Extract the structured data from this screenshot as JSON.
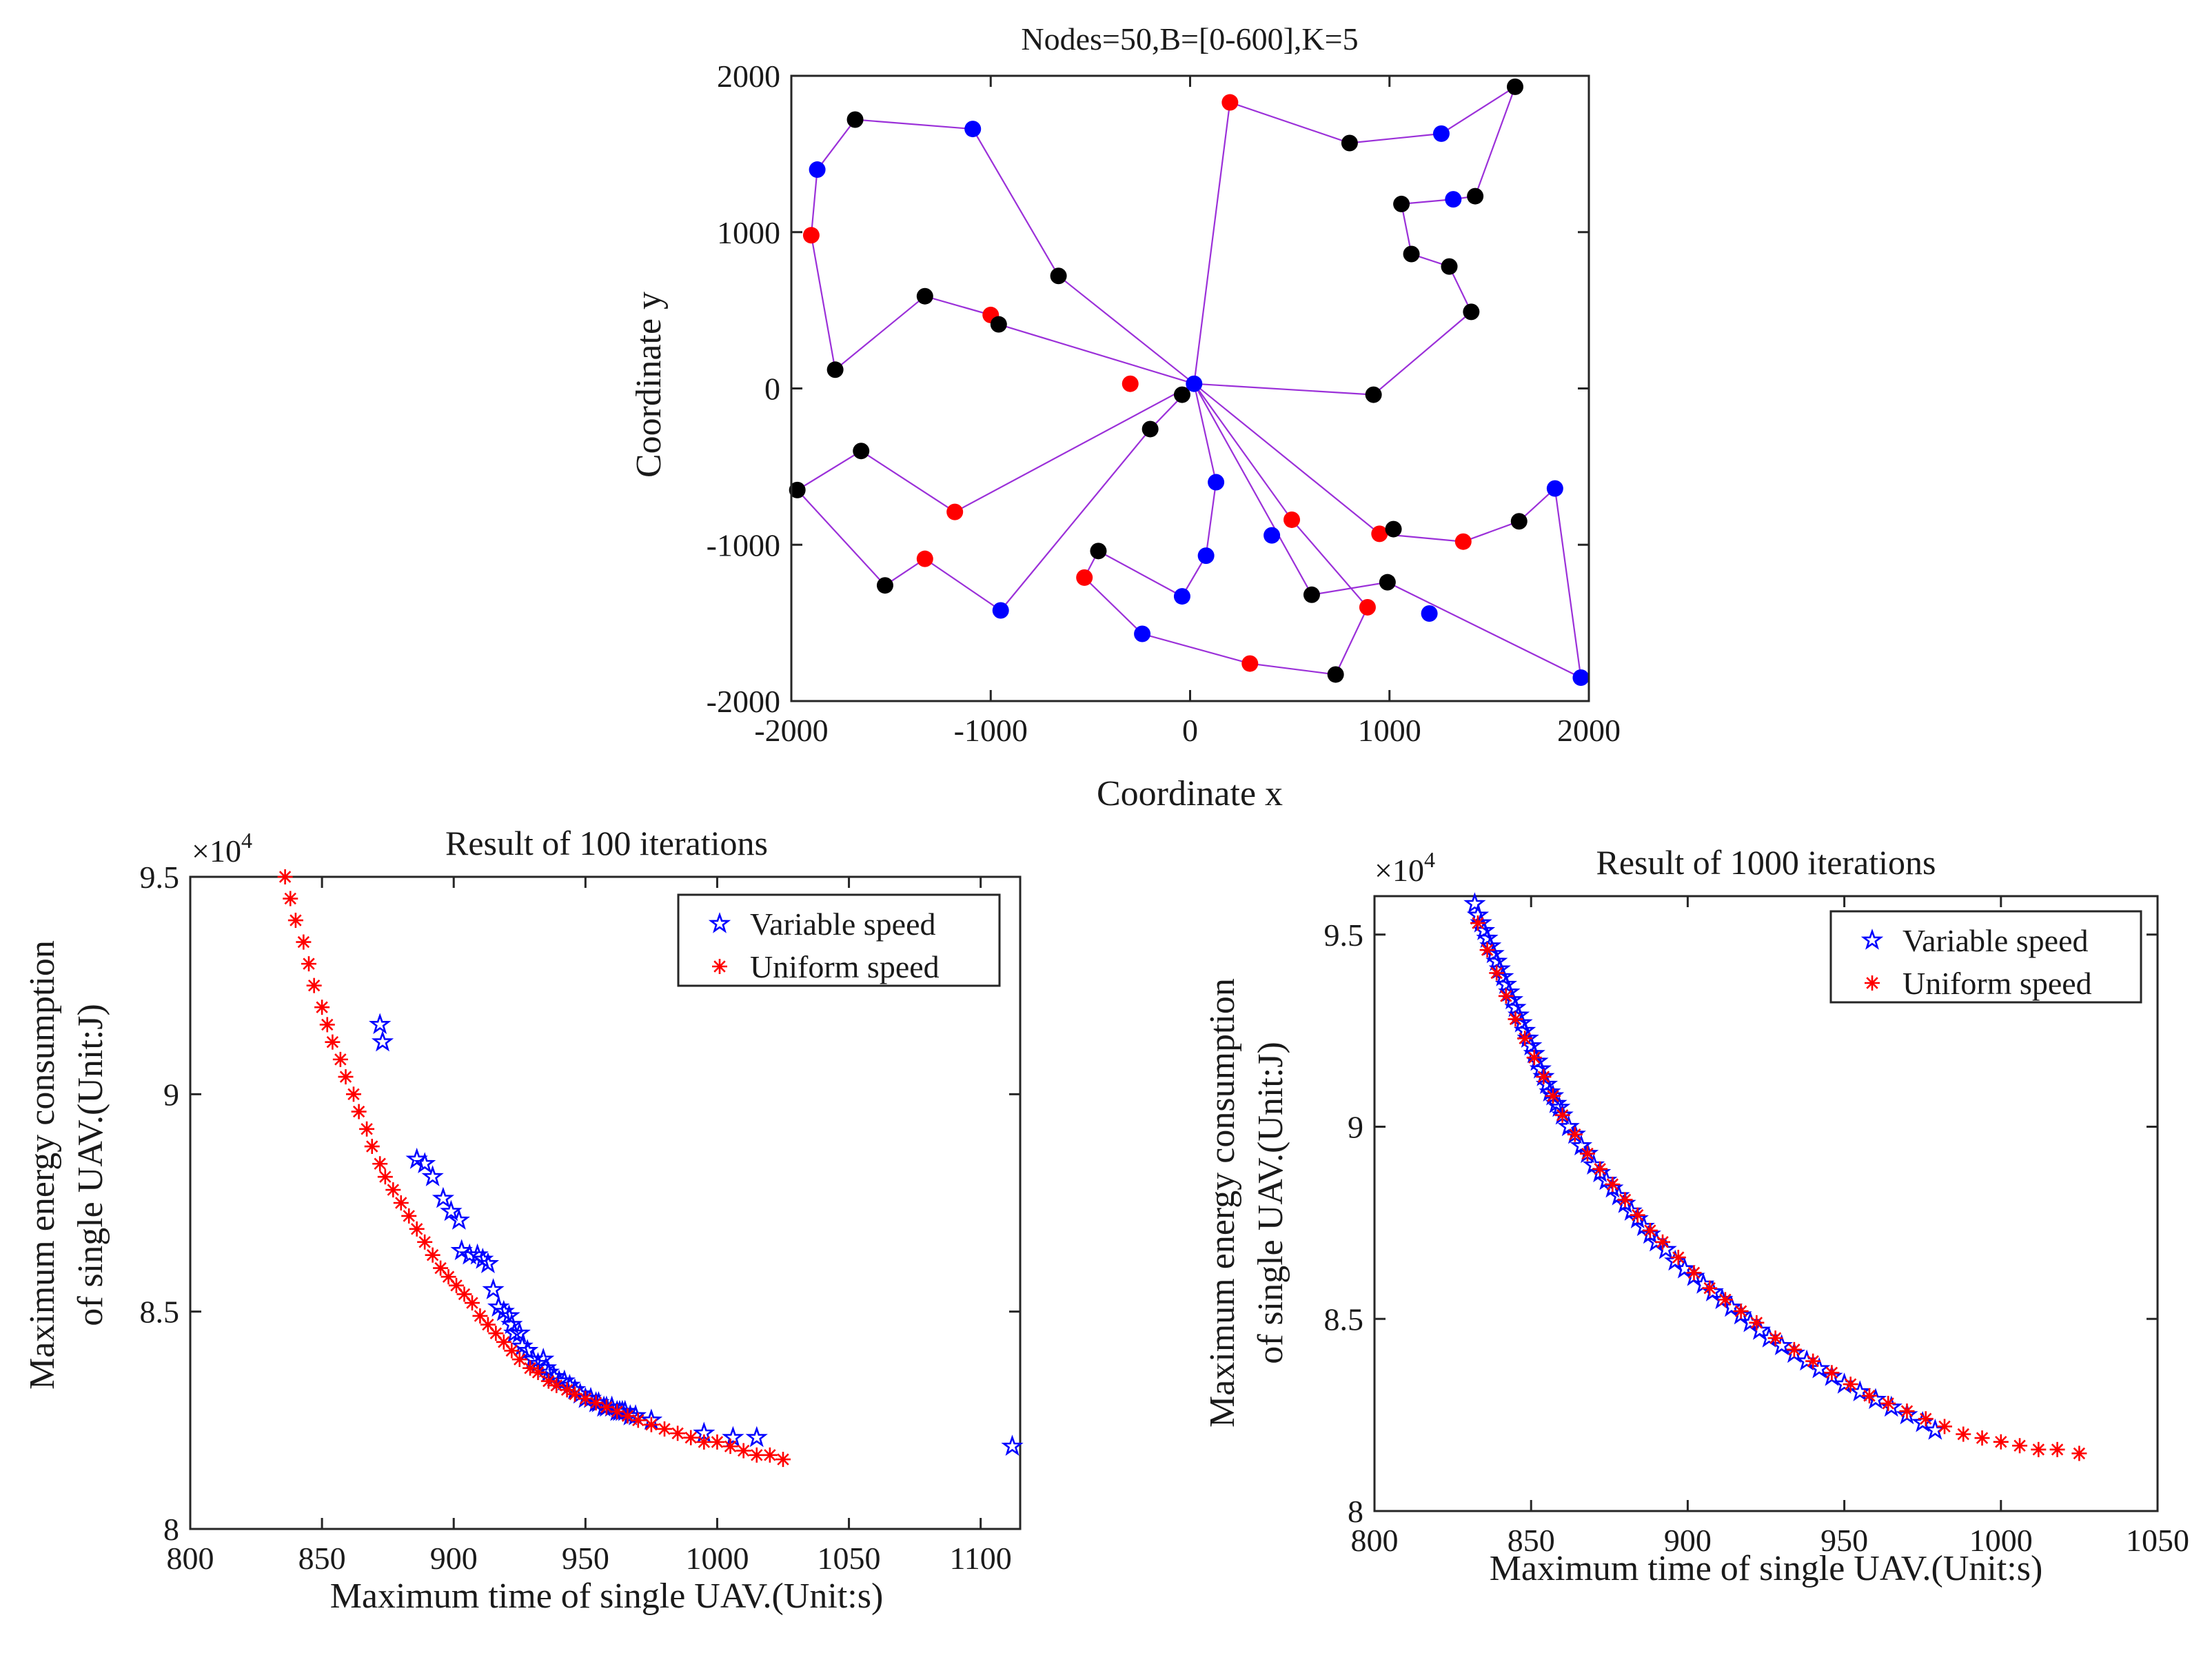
{
  "colors": {
    "route": "#9b30d9",
    "black_node": "#000000",
    "blue_node": "#0000ff",
    "red_node": "#ff0000",
    "variable": "#0000ff",
    "uniform": "#ff0000"
  },
  "chart_data": [
    {
      "id": "route_map",
      "type": "scatter",
      "title": "Nodes=50,B=[0-600],K=5",
      "xlabel": "Coordinate x",
      "ylabel": "Coordinate y",
      "xlim": [
        -2000,
        2000
      ],
      "ylim": [
        -2000,
        2000
      ],
      "xticks": [
        -2000,
        -1000,
        0,
        1000,
        2000
      ],
      "yticks": [
        -2000,
        -1000,
        0,
        1000,
        2000
      ],
      "xtick_labels": [
        "-2000",
        "-1000",
        "0",
        "1000",
        "2000"
      ],
      "ytick_labels": [
        "-2000",
        "-1000",
        "0",
        "1000",
        "2000"
      ],
      "depot": [
        20,
        30
      ],
      "nodes": [
        {
          "x": -1680,
          "y": 1720,
          "c": "black"
        },
        {
          "x": -1090,
          "y": 1660,
          "c": "blue"
        },
        {
          "x": -1870,
          "y": 1400,
          "c": "blue"
        },
        {
          "x": -1900,
          "y": 980,
          "c": "red"
        },
        {
          "x": -1780,
          "y": 120,
          "c": "black"
        },
        {
          "x": -660,
          "y": 720,
          "c": "black"
        },
        {
          "x": -1330,
          "y": 590,
          "c": "black"
        },
        {
          "x": -1000,
          "y": 470,
          "c": "red"
        },
        {
          "x": -960,
          "y": 410,
          "c": "black"
        },
        {
          "x": -300,
          "y": 30,
          "c": "red"
        },
        {
          "x": -40,
          "y": -40,
          "c": "black"
        },
        {
          "x": 200,
          "y": 1830,
          "c": "red"
        },
        {
          "x": 800,
          "y": 1570,
          "c": "black"
        },
        {
          "x": 1260,
          "y": 1630,
          "c": "blue"
        },
        {
          "x": 1630,
          "y": 1930,
          "c": "black"
        },
        {
          "x": 1430,
          "y": 1230,
          "c": "black"
        },
        {
          "x": 1320,
          "y": 1210,
          "c": "blue"
        },
        {
          "x": 1060,
          "y": 1180,
          "c": "black"
        },
        {
          "x": 1110,
          "y": 860,
          "c": "black"
        },
        {
          "x": 1300,
          "y": 780,
          "c": "black"
        },
        {
          "x": 1410,
          "y": 490,
          "c": "black"
        },
        {
          "x": 920,
          "y": -40,
          "c": "black"
        },
        {
          "x": -1650,
          "y": -400,
          "c": "black"
        },
        {
          "x": -1970,
          "y": -650,
          "c": "black"
        },
        {
          "x": -1180,
          "y": -790,
          "c": "red"
        },
        {
          "x": -1530,
          "y": -1260,
          "c": "black"
        },
        {
          "x": -1330,
          "y": -1090,
          "c": "red"
        },
        {
          "x": -950,
          "y": -1420,
          "c": "blue"
        },
        {
          "x": -200,
          "y": -260,
          "c": "black"
        },
        {
          "x": 130,
          "y": -600,
          "c": "blue"
        },
        {
          "x": 80,
          "y": -1070,
          "c": "blue"
        },
        {
          "x": -40,
          "y": -1330,
          "c": "blue"
        },
        {
          "x": -460,
          "y": -1040,
          "c": "black"
        },
        {
          "x": -530,
          "y": -1210,
          "c": "red"
        },
        {
          "x": -240,
          "y": -1570,
          "c": "blue"
        },
        {
          "x": 300,
          "y": -1760,
          "c": "red"
        },
        {
          "x": 730,
          "y": -1830,
          "c": "black"
        },
        {
          "x": 890,
          "y": -1400,
          "c": "red"
        },
        {
          "x": 610,
          "y": -1320,
          "c": "black"
        },
        {
          "x": 410,
          "y": -940,
          "c": "blue"
        },
        {
          "x": 510,
          "y": -840,
          "c": "red"
        },
        {
          "x": 990,
          "y": -1240,
          "c": "black"
        },
        {
          "x": 1200,
          "y": -1440,
          "c": "blue"
        },
        {
          "x": 1960,
          "y": -1850,
          "c": "blue"
        },
        {
          "x": 1830,
          "y": -640,
          "c": "blue"
        },
        {
          "x": 1650,
          "y": -850,
          "c": "black"
        },
        {
          "x": 1370,
          "y": -980,
          "c": "red"
        },
        {
          "x": 950,
          "y": -930,
          "c": "red"
        },
        {
          "x": 1020,
          "y": -900,
          "c": "black"
        }
      ],
      "routes": [
        [
          [
            20,
            30
          ],
          [
            -660,
            720
          ],
          [
            -1090,
            1660
          ],
          [
            -1680,
            1720
          ],
          [
            -1870,
            1400
          ],
          [
            -1900,
            980
          ],
          [
            -1780,
            120
          ],
          [
            -1330,
            590
          ],
          [
            -1000,
            470
          ],
          [
            -960,
            410
          ],
          [
            20,
            30
          ]
        ],
        [
          [
            20,
            30
          ],
          [
            200,
            1830
          ],
          [
            800,
            1570
          ],
          [
            1260,
            1630
          ],
          [
            1630,
            1930
          ],
          [
            1430,
            1230
          ],
          [
            1320,
            1210
          ],
          [
            1060,
            1180
          ],
          [
            1110,
            860
          ],
          [
            1300,
            780
          ],
          [
            1410,
            490
          ],
          [
            920,
            -40
          ],
          [
            20,
            30
          ]
        ],
        [
          [
            20,
            30
          ],
          [
            -1180,
            -790
          ],
          [
            -1650,
            -400
          ],
          [
            -1970,
            -650
          ],
          [
            -1530,
            -1260
          ],
          [
            -1330,
            -1090
          ],
          [
            -950,
            -1420
          ],
          [
            -200,
            -260
          ],
          [
            20,
            30
          ]
        ],
        [
          [
            20,
            30
          ],
          [
            130,
            -600
          ],
          [
            80,
            -1070
          ],
          [
            -40,
            -1330
          ],
          [
            -460,
            -1040
          ],
          [
            -530,
            -1210
          ],
          [
            -240,
            -1570
          ],
          [
            300,
            -1760
          ],
          [
            730,
            -1830
          ],
          [
            890,
            -1400
          ],
          [
            510,
            -840
          ],
          [
            20,
            30
          ]
        ],
        [
          [
            20,
            30
          ],
          [
            610,
            -1320
          ],
          [
            990,
            -1240
          ],
          [
            1960,
            -1850
          ],
          [
            1830,
            -640
          ],
          [
            1650,
            -850
          ],
          [
            1370,
            -980
          ],
          [
            950,
            -930
          ],
          [
            20,
            30
          ]
        ]
      ]
    },
    {
      "id": "pareto_100",
      "type": "scatter",
      "title": "Result of 100 iterations",
      "xlabel": "Maximum time of single UAV.(Unit:s)",
      "ylabel": [
        "Maximum energy consumption",
        "of single UAV.(Unit:J)"
      ],
      "multiplier_base": "×10",
      "multiplier_exp": "4",
      "xlim": [
        800,
        1115
      ],
      "ylim": [
        80000,
        95000
      ],
      "xticks": [
        800,
        850,
        900,
        950,
        1000,
        1050,
        1100
      ],
      "yticks": [
        80000,
        85000,
        90000,
        95000
      ],
      "xtick_labels": [
        "800",
        "850",
        "900",
        "950",
        "1000",
        "1050",
        "1100"
      ],
      "ytick_labels": [
        "8",
        "8.5",
        "9",
        "9.5"
      ],
      "series": [
        {
          "name": "Variable speed",
          "marker": "star",
          "color_key": "variable",
          "x": [
            872,
            873,
            886,
            889,
            892,
            896,
            899,
            902,
            903,
            906,
            909,
            911,
            913,
            915,
            917,
            919,
            921,
            922,
            923,
            925,
            926,
            928,
            930,
            932,
            934,
            935,
            936,
            938,
            940,
            942,
            944,
            946,
            948,
            950,
            952,
            954,
            955,
            957,
            958,
            960,
            962,
            963,
            964,
            965,
            967,
            969,
            975,
            995,
            1006,
            1015,
            1112
          ],
          "y": [
            91600,
            91200,
            88500,
            88400,
            88100,
            87600,
            87300,
            87100,
            86400,
            86300,
            86300,
            86200,
            86100,
            85500,
            85100,
            85000,
            84900,
            84700,
            84500,
            84500,
            84200,
            84100,
            83900,
            83800,
            83900,
            83700,
            83600,
            83500,
            83400,
            83400,
            83300,
            83200,
            83100,
            83000,
            83000,
            82900,
            82900,
            82800,
            82800,
            82800,
            82700,
            82700,
            82700,
            82700,
            82600,
            82600,
            82500,
            82200,
            82100,
            82100,
            81900
          ]
        },
        {
          "name": "Uniform speed",
          "marker": "asterisk",
          "color_key": "uniform",
          "x": [
            836,
            838,
            840,
            843,
            845,
            847,
            850,
            852,
            854,
            857,
            859,
            862,
            864,
            867,
            869,
            872,
            874,
            877,
            880,
            883,
            886,
            889,
            892,
            895,
            898,
            901,
            904,
            907,
            910,
            913,
            916,
            919,
            922,
            925,
            929,
            932,
            936,
            939,
            943,
            946,
            950,
            954,
            958,
            962,
            966,
            970,
            975,
            980,
            985,
            990,
            995,
            1000,
            1005,
            1010,
            1015,
            1020,
            1025
          ],
          "y": [
            95000,
            94500,
            94000,
            93500,
            93000,
            92500,
            92000,
            91600,
            91200,
            90800,
            90400,
            90000,
            89600,
            89200,
            88800,
            88400,
            88100,
            87800,
            87500,
            87200,
            86900,
            86600,
            86300,
            86000,
            85800,
            85600,
            85400,
            85200,
            84900,
            84700,
            84500,
            84300,
            84100,
            83900,
            83700,
            83600,
            83400,
            83300,
            83200,
            83100,
            83000,
            82900,
            82800,
            82700,
            82600,
            82500,
            82400,
            82300,
            82200,
            82100,
            82000,
            82000,
            81900,
            81800,
            81700,
            81700,
            81600
          ]
        }
      ]
    },
    {
      "id": "pareto_1000",
      "type": "scatter",
      "title": "Result of 1000 iterations",
      "xlabel": "Maximum time of single UAV.(Unit:s)",
      "ylabel": [
        "Maximum energy consumption",
        "of single UAV.(Unit:J)"
      ],
      "multiplier_base": "×10",
      "multiplier_exp": "4",
      "xlim": [
        800,
        1050
      ],
      "ylim": [
        80000,
        96000
      ],
      "xticks": [
        800,
        850,
        900,
        950,
        1000,
        1050
      ],
      "yticks": [
        80000,
        85000,
        90000,
        95000
      ],
      "xtick_labels": [
        "800",
        "850",
        "900",
        "950",
        "1000",
        "1050"
      ],
      "ytick_labels": [
        "8",
        "8.5",
        "9",
        "9.5"
      ],
      "series": [
        {
          "name": "Variable speed",
          "marker": "star",
          "color_key": "variable",
          "x": [
            832,
            833,
            834,
            835,
            836,
            837,
            838,
            839,
            840,
            841,
            842,
            843,
            844,
            845,
            846,
            847,
            848,
            849,
            850,
            851,
            852,
            853,
            854,
            855,
            856,
            857,
            858,
            859,
            860,
            862,
            864,
            866,
            868,
            870,
            872,
            874,
            876,
            878,
            880,
            882,
            884,
            886,
            888,
            890,
            893,
            896,
            899,
            902,
            905,
            908,
            911,
            914,
            917,
            920,
            923,
            926,
            930,
            934,
            938,
            942,
            946,
            950,
            955,
            960,
            965,
            970,
            975,
            979
          ],
          "y": [
            95800,
            95500,
            95300,
            95100,
            94900,
            94700,
            94500,
            94300,
            94100,
            93900,
            93700,
            93500,
            93300,
            93100,
            92900,
            92700,
            92500,
            92300,
            92100,
            91900,
            91700,
            91500,
            91300,
            91100,
            90900,
            90800,
            90600,
            90500,
            90300,
            90000,
            89800,
            89500,
            89300,
            89000,
            88800,
            88600,
            88400,
            88200,
            88000,
            87800,
            87600,
            87400,
            87200,
            87000,
            86800,
            86500,
            86300,
            86100,
            85900,
            85700,
            85500,
            85300,
            85100,
            84900,
            84700,
            84500,
            84300,
            84100,
            83900,
            83700,
            83500,
            83300,
            83100,
            82900,
            82700,
            82500,
            82300,
            82100
          ]
        },
        {
          "name": "Uniform speed",
          "marker": "asterisk",
          "color_key": "uniform",
          "x": [
            833,
            836,
            839,
            842,
            845,
            848,
            851,
            854,
            857,
            860,
            864,
            868,
            872,
            876,
            880,
            884,
            888,
            892,
            897,
            902,
            907,
            912,
            917,
            922,
            928,
            934,
            940,
            946,
            952,
            958,
            964,
            970,
            976,
            982,
            988,
            994,
            1000,
            1006,
            1012,
            1018,
            1025
          ],
          "y": [
            95300,
            94600,
            94000,
            93400,
            92800,
            92300,
            91800,
            91300,
            90800,
            90300,
            89800,
            89300,
            88900,
            88500,
            88100,
            87700,
            87300,
            87000,
            86600,
            86200,
            85800,
            85500,
            85200,
            84900,
            84500,
            84200,
            83900,
            83600,
            83300,
            83000,
            82800,
            82600,
            82400,
            82200,
            82000,
            81900,
            81800,
            81700,
            81600,
            81600,
            81500
          ]
        }
      ]
    }
  ]
}
